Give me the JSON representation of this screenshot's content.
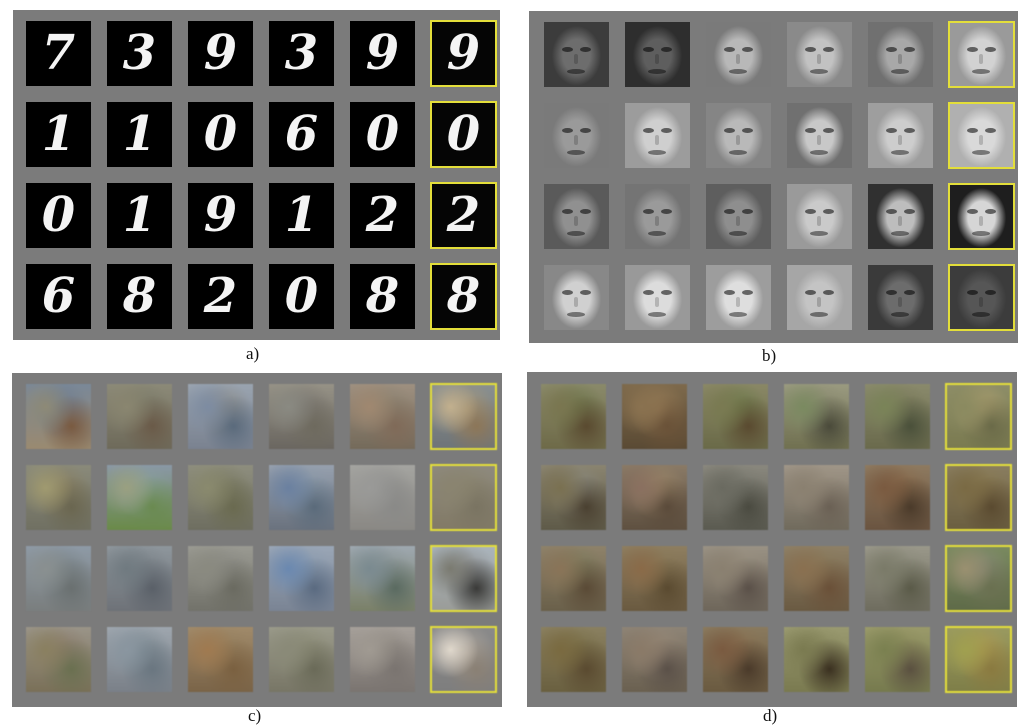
{
  "captions": {
    "a": "a)",
    "b": "b)",
    "c": "c)",
    "d": "d)"
  },
  "colors": {
    "panel_background": "#7b7b7b",
    "real_sample_border": "#e3de3a"
  },
  "mnist_digits": [
    [
      "7",
      "3",
      "9",
      "3",
      "9",
      "9"
    ],
    [
      "1",
      "1",
      "0",
      "6",
      "0",
      "0"
    ],
    [
      "0",
      "1",
      "9",
      "1",
      "2",
      "2"
    ],
    [
      "6",
      "8",
      "2",
      "0",
      "8",
      "8"
    ]
  ],
  "faces": [
    [
      [
        "#6d6d6d",
        "#3c3c3c"
      ],
      [
        "#5e5e5e",
        "#2e2e2e"
      ],
      [
        "#b8b8b8",
        "#7a7a7a"
      ],
      [
        "#c2c2c2",
        "#8a8a8a"
      ],
      [
        "#a8a8a8",
        "#707070"
      ],
      [
        "#d2d2d2",
        "#9a9a9a"
      ]
    ],
    [
      [
        "#9a9a9a",
        "#7a7a7a"
      ],
      [
        "#cfcfcf",
        "#9c9c9c"
      ],
      [
        "#b9b9b9",
        "#858585"
      ],
      [
        "#c8c8c8",
        "#707070"
      ],
      [
        "#cdcdcd",
        "#9e9e9e"
      ],
      [
        "#d9d9d9",
        "#b0b0b0"
      ]
    ],
    [
      [
        "#909090",
        "#5a5a5a"
      ],
      [
        "#9a9a9a",
        "#747474"
      ],
      [
        "#8e8e8e",
        "#5e5e5e"
      ],
      [
        "#cacaca",
        "#9a9a9a"
      ],
      [
        "#bdbdbd",
        "#303030"
      ],
      [
        "#d6d6d6",
        "#1e1e1e"
      ]
    ],
    [
      [
        "#d0d0d0",
        "#888888"
      ],
      [
        "#dcdcdc",
        "#999999"
      ],
      [
        "#dedede",
        "#9d9d9d"
      ],
      [
        "#c4c4c4",
        "#a6a6a6"
      ],
      [
        "#6c6c6c",
        "#3a3a3a"
      ],
      [
        "#565656",
        "#3c3c3c"
      ]
    ]
  ],
  "cifar": [
    [
      [
        "#8e8a76",
        "#7a5a40",
        "#6a7a90",
        "#7a8898",
        "#9a8a70"
      ],
      [
        "#8a8670",
        "#6a5a48",
        "#7a7a68",
        "#8c8a78",
        "#6e6a5a"
      ],
      [
        "#7d8ca2",
        "#5a6a7c",
        "#8a8a86",
        "#9aa4b0",
        "#7a8290"
      ],
      [
        "#8a8a82",
        "#6e6a5e",
        "#7a7670",
        "#969286",
        "#6a6660"
      ],
      [
        "#a08870",
        "#806a58",
        "#8a8270",
        "#9e9080",
        "#746a5a"
      ],
      [
        "#c2b08e",
        "#8c7658",
        "#a89878",
        "#8a9090",
        "#6e7478"
      ]
    ],
    [
      [
        "#a09a70",
        "#6a6650",
        "#8a8060",
        "#8a8a7a",
        "#707062"
      ],
      [
        "#9aa080",
        "#6a8a50",
        "#8aa0a0",
        "#8a98a6",
        "#6a8a48"
      ],
      [
        "#8a8a6e",
        "#6a6a50",
        "#7a7a60",
        "#8e8e7e",
        "#6e6e60"
      ],
      [
        "#6a80a0",
        "#5a6a7a",
        "#8a9aaa",
        "#96a0ae",
        "#6a727e"
      ],
      [
        "#9a9a98",
        "#8a8a88",
        "#8e8e8c",
        "#a4a4a0",
        "#8a8884"
      ],
      [
        "#8a8470",
        "#7a7462",
        "#8a846e",
        "#8e8a7e",
        "#827a66"
      ]
    ],
    [
      [
        "#8a9090",
        "#6a7070",
        "#7a8488",
        "#8e9aa6",
        "#7a7e7e"
      ],
      [
        "#707a80",
        "#5a6068",
        "#7a8288",
        "#8e969c",
        "#6e7278"
      ],
      [
        "#8a8a80",
        "#6a6a60",
        "#8a8a84",
        "#9a9a92",
        "#72726a"
      ],
      [
        "#6a88b0",
        "#5a6a80",
        "#8a9cb0",
        "#9aa6b6",
        "#7a8494"
      ],
      [
        "#7a8a90",
        "#5a6a60",
        "#8a9496",
        "#9ea8b0",
        "#7a8068"
      ],
      [
        "#7a7a70",
        "#3a3a38",
        "#8e9092",
        "#aab4bc",
        "#9a9c98"
      ]
    ],
    [
      [
        "#8a8060",
        "#6a7050",
        "#8a7a6a",
        "#9a9488",
        "#7a7058"
      ],
      [
        "#8a96a0",
        "#6a7680",
        "#7a8890",
        "#9ea6ae",
        "#7a8088"
      ],
      [
        "#a07a50",
        "#7a6040",
        "#96805e",
        "#a08a6a",
        "#7a6448"
      ],
      [
        "#8a8a78",
        "#6a6a58",
        "#8a8a74",
        "#9a9a8a",
        "#787666"
      ],
      [
        "#a09a92",
        "#7a7470",
        "#8e8880",
        "#a6a09a",
        "#7a7470"
      ],
      [
        "#e0d8cc",
        "#8a8074",
        "#b0a89e",
        "#8a8a8a",
        "#7e7e7e"
      ]
    ]
  ],
  "stl": [
    [
      [
        "#7a7650",
        "#5a4a30",
        "#6a7448",
        "#8a8a6a",
        "#6e6a48"
      ],
      [
        "#8a7250",
        "#6a5238",
        "#9a7e58",
        "#7e6a4c",
        "#5a4a34"
      ],
      [
        "#7a7a52",
        "#5a4a30",
        "#6a7a48",
        "#8a8866",
        "#6a6a48"
      ],
      [
        "#7a8a60",
        "#4a4a3a",
        "#8a8a70",
        "#9a9a80",
        "#707050"
      ],
      [
        "#7a8458",
        "#4a503a",
        "#7a7a5a",
        "#8a8a6c",
        "#6a6a4c"
      ],
      [
        "#8a8a60",
        "#6a6a48",
        "#b0a070",
        "#8e8e68",
        "#7a7a50"
      ]
    ],
    [
      [
        "#7a7050",
        "#4a4030",
        "#8a8a80",
        "#8a8470",
        "#5e5a48"
      ],
      [
        "#8a7060",
        "#5a4a3a",
        "#a08a6a",
        "#8a7a66",
        "#5e5040"
      ],
      [
        "#6a6a60",
        "#4a4a40",
        "#7a7a70",
        "#8a887e",
        "#5a5a50"
      ],
      [
        "#8a8070",
        "#6a6054",
        "#9a9080",
        "#a09688",
        "#706a5c"
      ],
      [
        "#7a5a40",
        "#4a3a2a",
        "#8a6a4a",
        "#8e7a60",
        "#6a5440"
      ],
      [
        "#7a6a44",
        "#5a4a30",
        "#8a7a50",
        "#8a7e60",
        "#6a5e40"
      ]
    ],
    [
      [
        "#8a7458",
        "#5a4a36",
        "#7a7a5a",
        "#8e826a",
        "#6a604a"
      ],
      [
        "#8a6a48",
        "#5a4a30",
        "#8a7a58",
        "#8e7e60",
        "#6a5a40"
      ],
      [
        "#8a8070",
        "#5a5048",
        "#9a9080",
        "#9a9284",
        "#6e665a"
      ],
      [
        "#8a7050",
        "#6a5038",
        "#8a7a5a",
        "#8e8066",
        "#6a5a42"
      ],
      [
        "#7a7a68",
        "#5a5a48",
        "#8a8a7a",
        "#9a988a",
        "#6e6c5e"
      ],
      [
        "#9a9070",
        "#6a7050",
        "#8a8a7a",
        "#7a8a60",
        "#5e6a48"
      ]
    ],
    [
      [
        "#7a6a40",
        "#5a4a30",
        "#7a7048",
        "#8a8060",
        "#6a6040"
      ],
      [
        "#8a7a68",
        "#5a5048",
        "#9a8a78",
        "#8e8476",
        "#6a6050"
      ],
      [
        "#7a5a40",
        "#4a3a2a",
        "#8a7050",
        "#8a7a5e",
        "#6a5a40"
      ],
      [
        "#7a7a50",
        "#3a3020",
        "#8a8a60",
        "#9a9a70",
        "#7a7a50"
      ],
      [
        "#7a8050",
        "#5a5040",
        "#8a8a5a",
        "#9a9a6a",
        "#767a4e"
      ],
      [
        "#a0a050",
        "#8a7a40",
        "#b09a50",
        "#9a9a60",
        "#7e7e48"
      ]
    ]
  ]
}
